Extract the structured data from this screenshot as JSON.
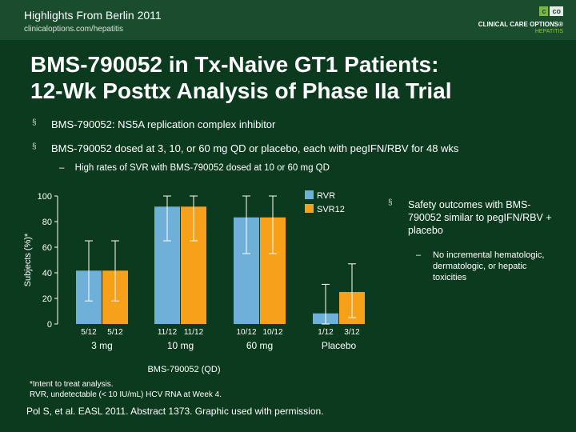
{
  "header": {
    "title": "Highlights From Berlin 2011",
    "url": "clinicaloptions.com/hepatitis",
    "logo_tag_1": "c",
    "logo_tag_2": "co",
    "logo_main": "CLINICAL CARE OPTIONS®",
    "logo_sub": "HEPATITIS"
  },
  "slide": {
    "title_line1": "BMS-790052 in Tx-Naive GT1 Patients:",
    "title_line2": "12-Wk Posttx Analysis of Phase IIa Trial",
    "bullets": [
      "BMS-790052: NS5A replication complex inhibitor",
      "BMS-790052 dosed at 3, 10, or 60 mg QD or placebo, each with pegIFN/RBV for 48 wks"
    ],
    "bullet_marker": "§",
    "dash_marker": "–",
    "sub_bullet": "High rates of SVR with BMS-790052 dosed at 10 or 60 mg QD",
    "side_bullet": "Safety outcomes with BMS-790052 similar to pegIFN/RBV + placebo",
    "side_sub_bullet": "No incremental hematologic, dermatologic, or hepatic toxicities",
    "footnote_1": "*Intent to treat analysis.",
    "footnote_2": "RVR, undetectable (< 10 IU/mL) HCV RNA at Week 4.",
    "citation": "Pol S, et al. EASL 2011. Abstract 1373. Graphic used with permission."
  },
  "chart_data": {
    "type": "bar",
    "ylabel": "Subjects (%)*",
    "xlabel": "BMS-790052 (QD)",
    "ylim": [
      0,
      100
    ],
    "yticks": [
      0,
      20,
      40,
      60,
      80,
      100
    ],
    "categories": [
      "3 mg",
      "10 mg",
      "60 mg",
      "Placebo"
    ],
    "series": [
      {
        "name": "RVR",
        "color": "#6fb0d8",
        "values": [
          41.7,
          91.7,
          83.3,
          8.3
        ],
        "labels": [
          "5/12",
          "11/12",
          "10/12",
          "1/12"
        ],
        "err_low": [
          18,
          65,
          55,
          0
        ],
        "err_high": [
          65,
          100,
          100,
          31
        ]
      },
      {
        "name": "SVR12",
        "color": "#f7a11a",
        "values": [
          41.7,
          91.7,
          83.3,
          25.0
        ],
        "labels": [
          "5/12",
          "11/12",
          "10/12",
          "3/12"
        ],
        "err_low": [
          18,
          65,
          55,
          5
        ],
        "err_high": [
          65,
          100,
          100,
          47
        ]
      }
    ],
    "legend_position": "top-right",
    "grid": false
  }
}
